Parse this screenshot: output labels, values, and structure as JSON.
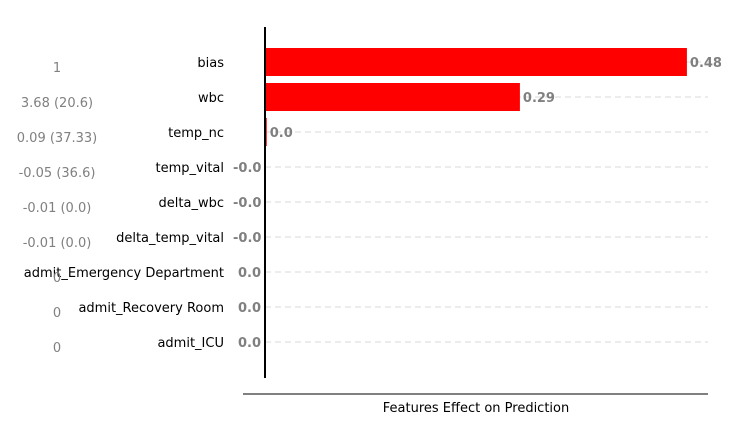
{
  "chart_data": {
    "type": "bar",
    "orientation": "horizontal",
    "xlabel": "Features Effect on Prediction",
    "xlim": [
      0,
      0.52
    ],
    "grid": "y-dashed",
    "bar_color": "#ff0000",
    "categories": [
      "bias",
      "wbc",
      "temp_nc",
      "temp_vital",
      "delta_wbc",
      "delta_temp_vital",
      "admit_Emergency Department",
      "admit_Recovery Room",
      "admit_ICU"
    ],
    "feature_values": [
      "1",
      "3.68 (20.6)",
      "0.09 (37.33)",
      "-0.05 (36.6)",
      "-0.01 (0.0)",
      "-0.01 (0.0)",
      "0",
      "0",
      "0"
    ],
    "values": [
      0.48,
      0.29,
      0.002,
      -0.0003,
      -0.0002,
      -0.0002,
      0,
      0,
      0
    ],
    "value_labels": [
      "0.48",
      "0.29",
      "0.0",
      "-0.0",
      "-0.0",
      "-0.0",
      "0.0",
      "0.0",
      "0.0"
    ]
  }
}
